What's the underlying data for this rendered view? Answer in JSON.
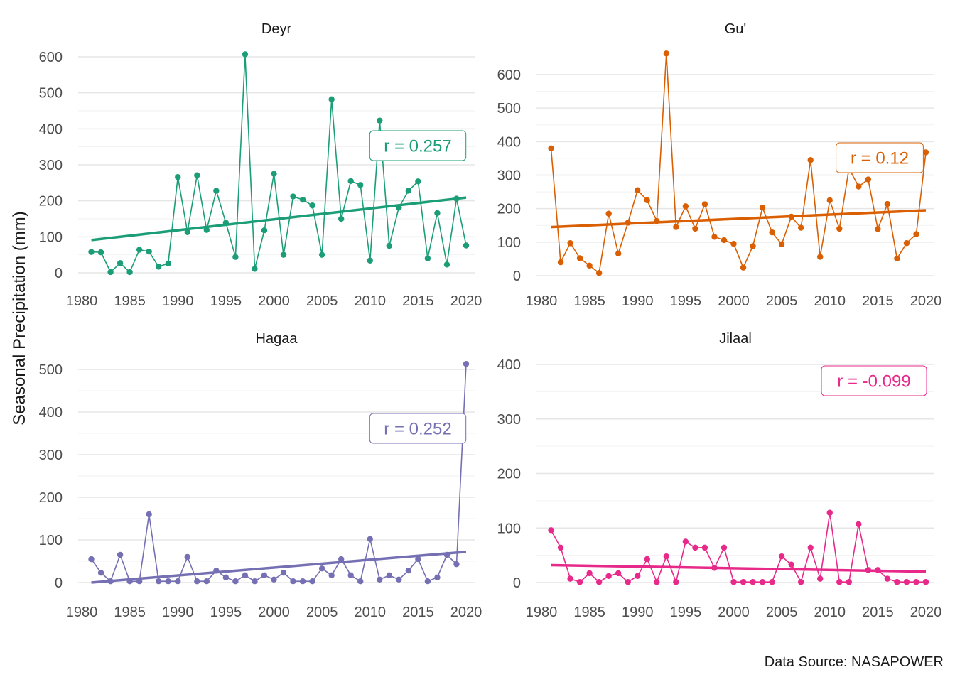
{
  "y_axis_label": "Seasonal Precipitation (mm)",
  "caption": "Data Source: NASAPOWER",
  "chart_data": [
    {
      "type": "line",
      "title": "Deyr",
      "color": "#1B9E77",
      "xlim": [
        1980,
        2020
      ],
      "ylim": [
        0,
        600
      ],
      "x_ticks": [
        1980,
        1985,
        1990,
        1995,
        2000,
        2005,
        2010,
        2015,
        2020
      ],
      "y_ticks": [
        0,
        100,
        200,
        300,
        400,
        500,
        600
      ],
      "annotation": "r = 0.257",
      "x": [
        1981,
        1982,
        1983,
        1984,
        1985,
        1986,
        1987,
        1988,
        1989,
        1990,
        1991,
        1992,
        1993,
        1994,
        1995,
        1996,
        1997,
        1998,
        1999,
        2000,
        2001,
        2002,
        2003,
        2004,
        2005,
        2006,
        2007,
        2008,
        2009,
        2010,
        2011,
        2012,
        2013,
        2014,
        2015,
        2016,
        2017,
        2018,
        2019,
        2020
      ],
      "values": [
        58,
        57,
        2,
        27,
        2,
        64,
        59,
        17,
        26,
        266,
        113,
        271,
        119,
        228,
        139,
        44,
        607,
        11,
        118,
        275,
        50,
        212,
        203,
        187,
        50,
        482,
        150,
        255,
        244,
        34,
        423,
        75,
        181,
        228,
        254,
        40,
        166,
        23,
        206,
        76
      ],
      "trend": [
        [
          1981,
          91
        ],
        [
          2020,
          209
        ]
      ]
    },
    {
      "type": "line",
      "title": "Gu'",
      "color": "#D95F02",
      "xlim": [
        1980,
        2020
      ],
      "ylim": [
        0,
        650
      ],
      "x_ticks": [
        1980,
        1985,
        1990,
        1995,
        2000,
        2005,
        2010,
        2015,
        2020
      ],
      "y_ticks": [
        0,
        100,
        200,
        300,
        400,
        500,
        600
      ],
      "annotation": "r = 0.12",
      "x": [
        1981,
        1982,
        1983,
        1984,
        1985,
        1986,
        1987,
        1988,
        1989,
        1990,
        1991,
        1992,
        1993,
        1994,
        1995,
        1996,
        1997,
        1998,
        1999,
        2000,
        2001,
        2002,
        2003,
        2004,
        2005,
        2006,
        2007,
        2008,
        2009,
        2010,
        2011,
        2012,
        2013,
        2014,
        2015,
        2016,
        2017,
        2018,
        2019,
        2020
      ],
      "values": [
        380,
        40,
        97,
        52,
        30,
        8,
        185,
        66,
        158,
        255,
        225,
        163,
        663,
        145,
        207,
        140,
        213,
        116,
        106,
        95,
        24,
        88,
        203,
        129,
        94,
        176,
        143,
        345,
        56,
        225,
        140,
        320,
        266,
        287,
        139,
        214,
        51,
        97,
        124,
        368
      ],
      "trend": [
        [
          1981,
          145
        ],
        [
          2020,
          195
        ]
      ]
    },
    {
      "type": "line",
      "title": "Hagaa",
      "color": "#7570B3",
      "xlim": [
        1980,
        2020
      ],
      "ylim": [
        0,
        500
      ],
      "x_ticks": [
        1980,
        1985,
        1990,
        1995,
        2000,
        2005,
        2010,
        2015,
        2020
      ],
      "y_ticks": [
        0,
        100,
        200,
        300,
        400,
        500
      ],
      "annotation": "r = 0.252",
      "x": [
        1981,
        1982,
        1983,
        1984,
        1985,
        1986,
        1987,
        1988,
        1989,
        1990,
        1991,
        1992,
        1993,
        1994,
        1995,
        1996,
        1997,
        1998,
        1999,
        2000,
        2001,
        2002,
        2003,
        2004,
        2005,
        2006,
        2007,
        2008,
        2009,
        2010,
        2011,
        2012,
        2013,
        2014,
        2015,
        2016,
        2017,
        2018,
        2019,
        2020
      ],
      "values": [
        55,
        23,
        3,
        65,
        3,
        3,
        160,
        3,
        3,
        3,
        60,
        3,
        3,
        28,
        12,
        3,
        17,
        3,
        17,
        7,
        23,
        3,
        3,
        3,
        33,
        17,
        55,
        17,
        3,
        102,
        7,
        17,
        7,
        28,
        55,
        3,
        12,
        65,
        43,
        513
      ],
      "trend": [
        [
          1981,
          0
        ],
        [
          2020,
          72
        ]
      ]
    },
    {
      "type": "line",
      "title": "Jilaal",
      "color": "#E7298A",
      "xlim": [
        1980,
        2020
      ],
      "ylim": [
        0,
        400
      ],
      "x_ticks": [
        1980,
        1985,
        1990,
        1995,
        2000,
        2005,
        2010,
        2015,
        2020
      ],
      "y_ticks": [
        0,
        100,
        200,
        300,
        400
      ],
      "annotation": "r = -0.099",
      "x": [
        1981,
        1982,
        1983,
        1984,
        1985,
        1986,
        1987,
        1988,
        1989,
        1990,
        1991,
        1992,
        1993,
        1994,
        1995,
        1996,
        1997,
        1998,
        1999,
        2000,
        2001,
        2002,
        2003,
        2004,
        2005,
        2006,
        2007,
        2008,
        2009,
        2010,
        2011,
        2012,
        2013,
        2014,
        2015,
        2016,
        2017,
        2018,
        2019,
        2020
      ],
      "values": [
        96,
        64,
        7,
        1,
        17,
        1,
        12,
        17,
        1,
        12,
        43,
        1,
        48,
        1,
        75,
        64,
        64,
        27,
        64,
        1,
        1,
        1,
        1,
        1,
        48,
        33,
        1,
        64,
        7,
        128,
        1,
        1,
        107,
        23,
        23,
        7,
        1,
        1,
        1,
        1
      ],
      "trend": [
        [
          1981,
          32
        ],
        [
          2020,
          20
        ]
      ]
    }
  ]
}
